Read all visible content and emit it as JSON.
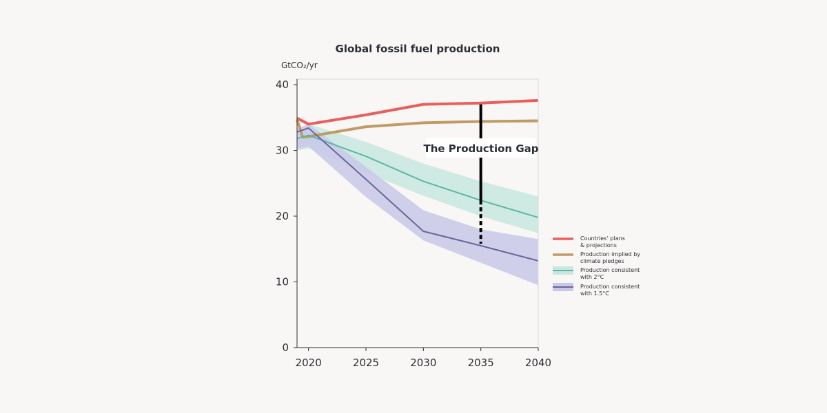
{
  "chart_data": {
    "type": "line",
    "title": "Global fossil fuel production",
    "ylabel": "GtCO₂/yr",
    "xlabel": "",
    "xlim": [
      2019,
      2040
    ],
    "ylim": [
      0,
      40
    ],
    "xticks": [
      2020,
      2025,
      2030,
      2035,
      2040
    ],
    "yticks": [
      0,
      10,
      20,
      30,
      40
    ],
    "series": [
      {
        "name": "Countries' plans & projections",
        "legend_lines": [
          "Countries’ plans",
          "& projections"
        ],
        "color": "#e8605e",
        "points": [
          [
            2019,
            34.9
          ],
          [
            2020,
            34.0
          ],
          [
            2025,
            35.4
          ],
          [
            2030,
            37.0
          ],
          [
            2035,
            37.2
          ],
          [
            2040,
            37.6
          ]
        ]
      },
      {
        "name": "Production implied by climate pledges",
        "legend_lines": [
          "Production implied by",
          " climate pledges"
        ],
        "color": "#c09b65",
        "points": [
          [
            2019,
            34.7
          ],
          [
            2019.5,
            32.0
          ],
          [
            2020,
            32.1
          ],
          [
            2025,
            33.6
          ],
          [
            2030,
            34.2
          ],
          [
            2035,
            34.4
          ],
          [
            2040,
            34.5
          ]
        ]
      },
      {
        "name": "Production consistent with 2°C",
        "legend_lines": [
          "Production consistent",
          "with 2°C"
        ],
        "color": "#5bb7a5",
        "band_color": "#c8e7de",
        "points": [
          [
            2019,
            31.8
          ],
          [
            2020,
            32.3
          ],
          [
            2025,
            29.1
          ],
          [
            2030,
            25.3
          ],
          [
            2035,
            22.4
          ],
          [
            2040,
            19.8
          ]
        ],
        "band_upper": [
          [
            2019,
            32.5
          ],
          [
            2020,
            34.0
          ],
          [
            2025,
            31.3
          ],
          [
            2030,
            28.0
          ],
          [
            2035,
            25.3
          ],
          [
            2040,
            23.0
          ]
        ],
        "band_lower": [
          [
            2019,
            30.0
          ],
          [
            2020,
            30.3
          ],
          [
            2025,
            26.6
          ],
          [
            2030,
            23.1
          ],
          [
            2035,
            20.0
          ],
          [
            2040,
            17.4
          ]
        ]
      },
      {
        "name": "Production consistent with 1.5°C",
        "legend_lines": [
          "Production consistent",
          "with 1.5°C"
        ],
        "color": "#6a6599",
        "band_color": "#c9c8e8",
        "points": [
          [
            2019,
            32.8
          ],
          [
            2020,
            33.4
          ],
          [
            2025,
            25.6
          ],
          [
            2030,
            17.7
          ],
          [
            2035,
            15.5
          ],
          [
            2040,
            13.2
          ]
        ],
        "band_upper": [
          [
            2019,
            33.3
          ],
          [
            2020,
            34.0
          ],
          [
            2025,
            27.5
          ],
          [
            2030,
            20.9
          ],
          [
            2035,
            18.0
          ],
          [
            2040,
            16.5
          ]
        ],
        "band_lower": [
          [
            2019,
            30.2
          ],
          [
            2020,
            30.6
          ],
          [
            2025,
            22.9
          ],
          [
            2030,
            16.3
          ],
          [
            2035,
            12.9
          ],
          [
            2040,
            9.5
          ]
        ]
      }
    ],
    "annotation": {
      "text": "The Production Gap",
      "x": 2035,
      "solid_from": 37.0,
      "solid_to": 22.4,
      "dashed_to": 15.8
    },
    "legend_position": "right"
  }
}
